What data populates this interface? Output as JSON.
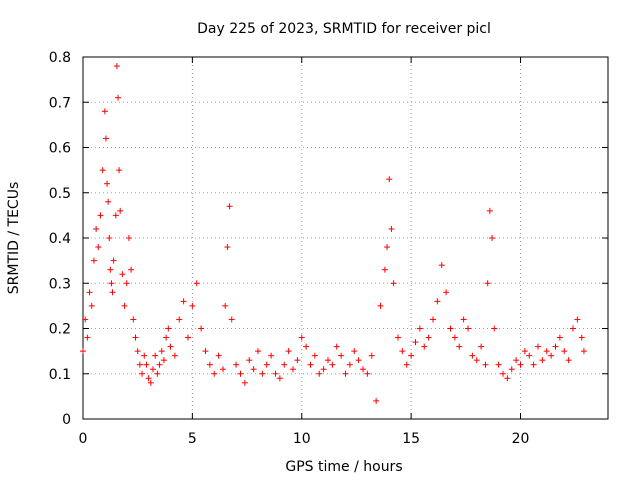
{
  "chart_data": {
    "type": "scatter",
    "title": "Day 225 of 2023, SRMTID for receiver picl",
    "xlabel": "GPS time / hours",
    "ylabel": "SRMTID / TECUs",
    "xlim": [
      0,
      24
    ],
    "ylim": [
      0,
      0.8
    ],
    "xticks": [
      0,
      5,
      10,
      15,
      20
    ],
    "yticks": [
      0,
      0.1,
      0.2,
      0.3,
      0.4,
      0.5,
      0.6,
      0.7,
      0.8
    ],
    "xtick_labels": [
      "0",
      "5",
      "10",
      "15",
      "20"
    ],
    "ytick_labels": [
      "0",
      "0.1",
      "0.2",
      "0.3",
      "0.4",
      "0.5",
      "0.6",
      "0.7",
      "0.8"
    ],
    "grid": true,
    "marker": "+",
    "marker_color": "#ff0000",
    "series": [
      {
        "name": "SRMTID",
        "x": [
          0.0,
          0.1,
          0.2,
          0.3,
          0.4,
          0.5,
          0.6,
          0.7,
          0.8,
          0.9,
          1.0,
          1.05,
          1.1,
          1.15,
          1.2,
          1.25,
          1.3,
          1.35,
          1.4,
          1.5,
          1.55,
          1.6,
          1.65,
          1.7,
          1.8,
          1.9,
          2.0,
          2.1,
          2.2,
          2.3,
          2.4,
          2.5,
          2.6,
          2.7,
          2.8,
          2.9,
          3.0,
          3.1,
          3.2,
          3.3,
          3.4,
          3.5,
          3.6,
          3.7,
          3.8,
          3.9,
          4.0,
          4.2,
          4.4,
          4.6,
          4.8,
          5.0,
          5.2,
          5.4,
          5.6,
          5.8,
          6.0,
          6.2,
          6.4,
          6.5,
          6.6,
          6.7,
          6.8,
          7.0,
          7.2,
          7.4,
          7.6,
          7.8,
          8.0,
          8.2,
          8.4,
          8.6,
          8.8,
          9.0,
          9.2,
          9.4,
          9.6,
          9.8,
          10.0,
          10.2,
          10.4,
          10.6,
          10.8,
          11.0,
          11.2,
          11.4,
          11.6,
          11.8,
          12.0,
          12.2,
          12.4,
          12.6,
          12.8,
          13.0,
          13.2,
          13.4,
          13.6,
          13.8,
          13.9,
          14.0,
          14.1,
          14.2,
          14.4,
          14.6,
          14.8,
          15.0,
          15.2,
          15.4,
          15.6,
          15.8,
          16.0,
          16.2,
          16.4,
          16.6,
          16.8,
          17.0,
          17.2,
          17.4,
          17.6,
          17.8,
          18.0,
          18.2,
          18.4,
          18.5,
          18.6,
          18.7,
          18.8,
          19.0,
          19.2,
          19.4,
          19.6,
          19.8,
          20.0,
          20.2,
          20.4,
          20.6,
          20.8,
          21.0,
          21.2,
          21.4,
          21.6,
          21.8,
          22.0,
          22.2,
          22.4,
          22.6,
          22.8,
          22.9
        ],
        "y": [
          0.15,
          0.22,
          0.18,
          0.28,
          0.25,
          0.35,
          0.42,
          0.38,
          0.45,
          0.55,
          0.68,
          0.62,
          0.52,
          0.48,
          0.4,
          0.33,
          0.3,
          0.28,
          0.35,
          0.45,
          0.78,
          0.71,
          0.55,
          0.46,
          0.32,
          0.25,
          0.3,
          0.4,
          0.33,
          0.22,
          0.18,
          0.15,
          0.12,
          0.1,
          0.14,
          0.12,
          0.09,
          0.08,
          0.11,
          0.14,
          0.1,
          0.12,
          0.15,
          0.13,
          0.18,
          0.2,
          0.16,
          0.14,
          0.22,
          0.26,
          0.18,
          0.25,
          0.3,
          0.2,
          0.15,
          0.12,
          0.1,
          0.14,
          0.11,
          0.25,
          0.38,
          0.47,
          0.22,
          0.12,
          0.1,
          0.08,
          0.13,
          0.11,
          0.15,
          0.1,
          0.12,
          0.14,
          0.1,
          0.09,
          0.12,
          0.15,
          0.11,
          0.13,
          0.18,
          0.16,
          0.12,
          0.14,
          0.1,
          0.11,
          0.13,
          0.12,
          0.16,
          0.14,
          0.1,
          0.12,
          0.15,
          0.13,
          0.11,
          0.1,
          0.14,
          0.04,
          0.25,
          0.33,
          0.38,
          0.53,
          0.42,
          0.3,
          0.18,
          0.15,
          0.12,
          0.14,
          0.17,
          0.2,
          0.16,
          0.18,
          0.22,
          0.26,
          0.34,
          0.28,
          0.2,
          0.18,
          0.16,
          0.22,
          0.2,
          0.14,
          0.13,
          0.16,
          0.12,
          0.3,
          0.46,
          0.4,
          0.2,
          0.12,
          0.1,
          0.09,
          0.11,
          0.13,
          0.12,
          0.15,
          0.14,
          0.12,
          0.16,
          0.13,
          0.15,
          0.14,
          0.16,
          0.18,
          0.15,
          0.13,
          0.2,
          0.22,
          0.18,
          0.15
        ]
      }
    ]
  }
}
